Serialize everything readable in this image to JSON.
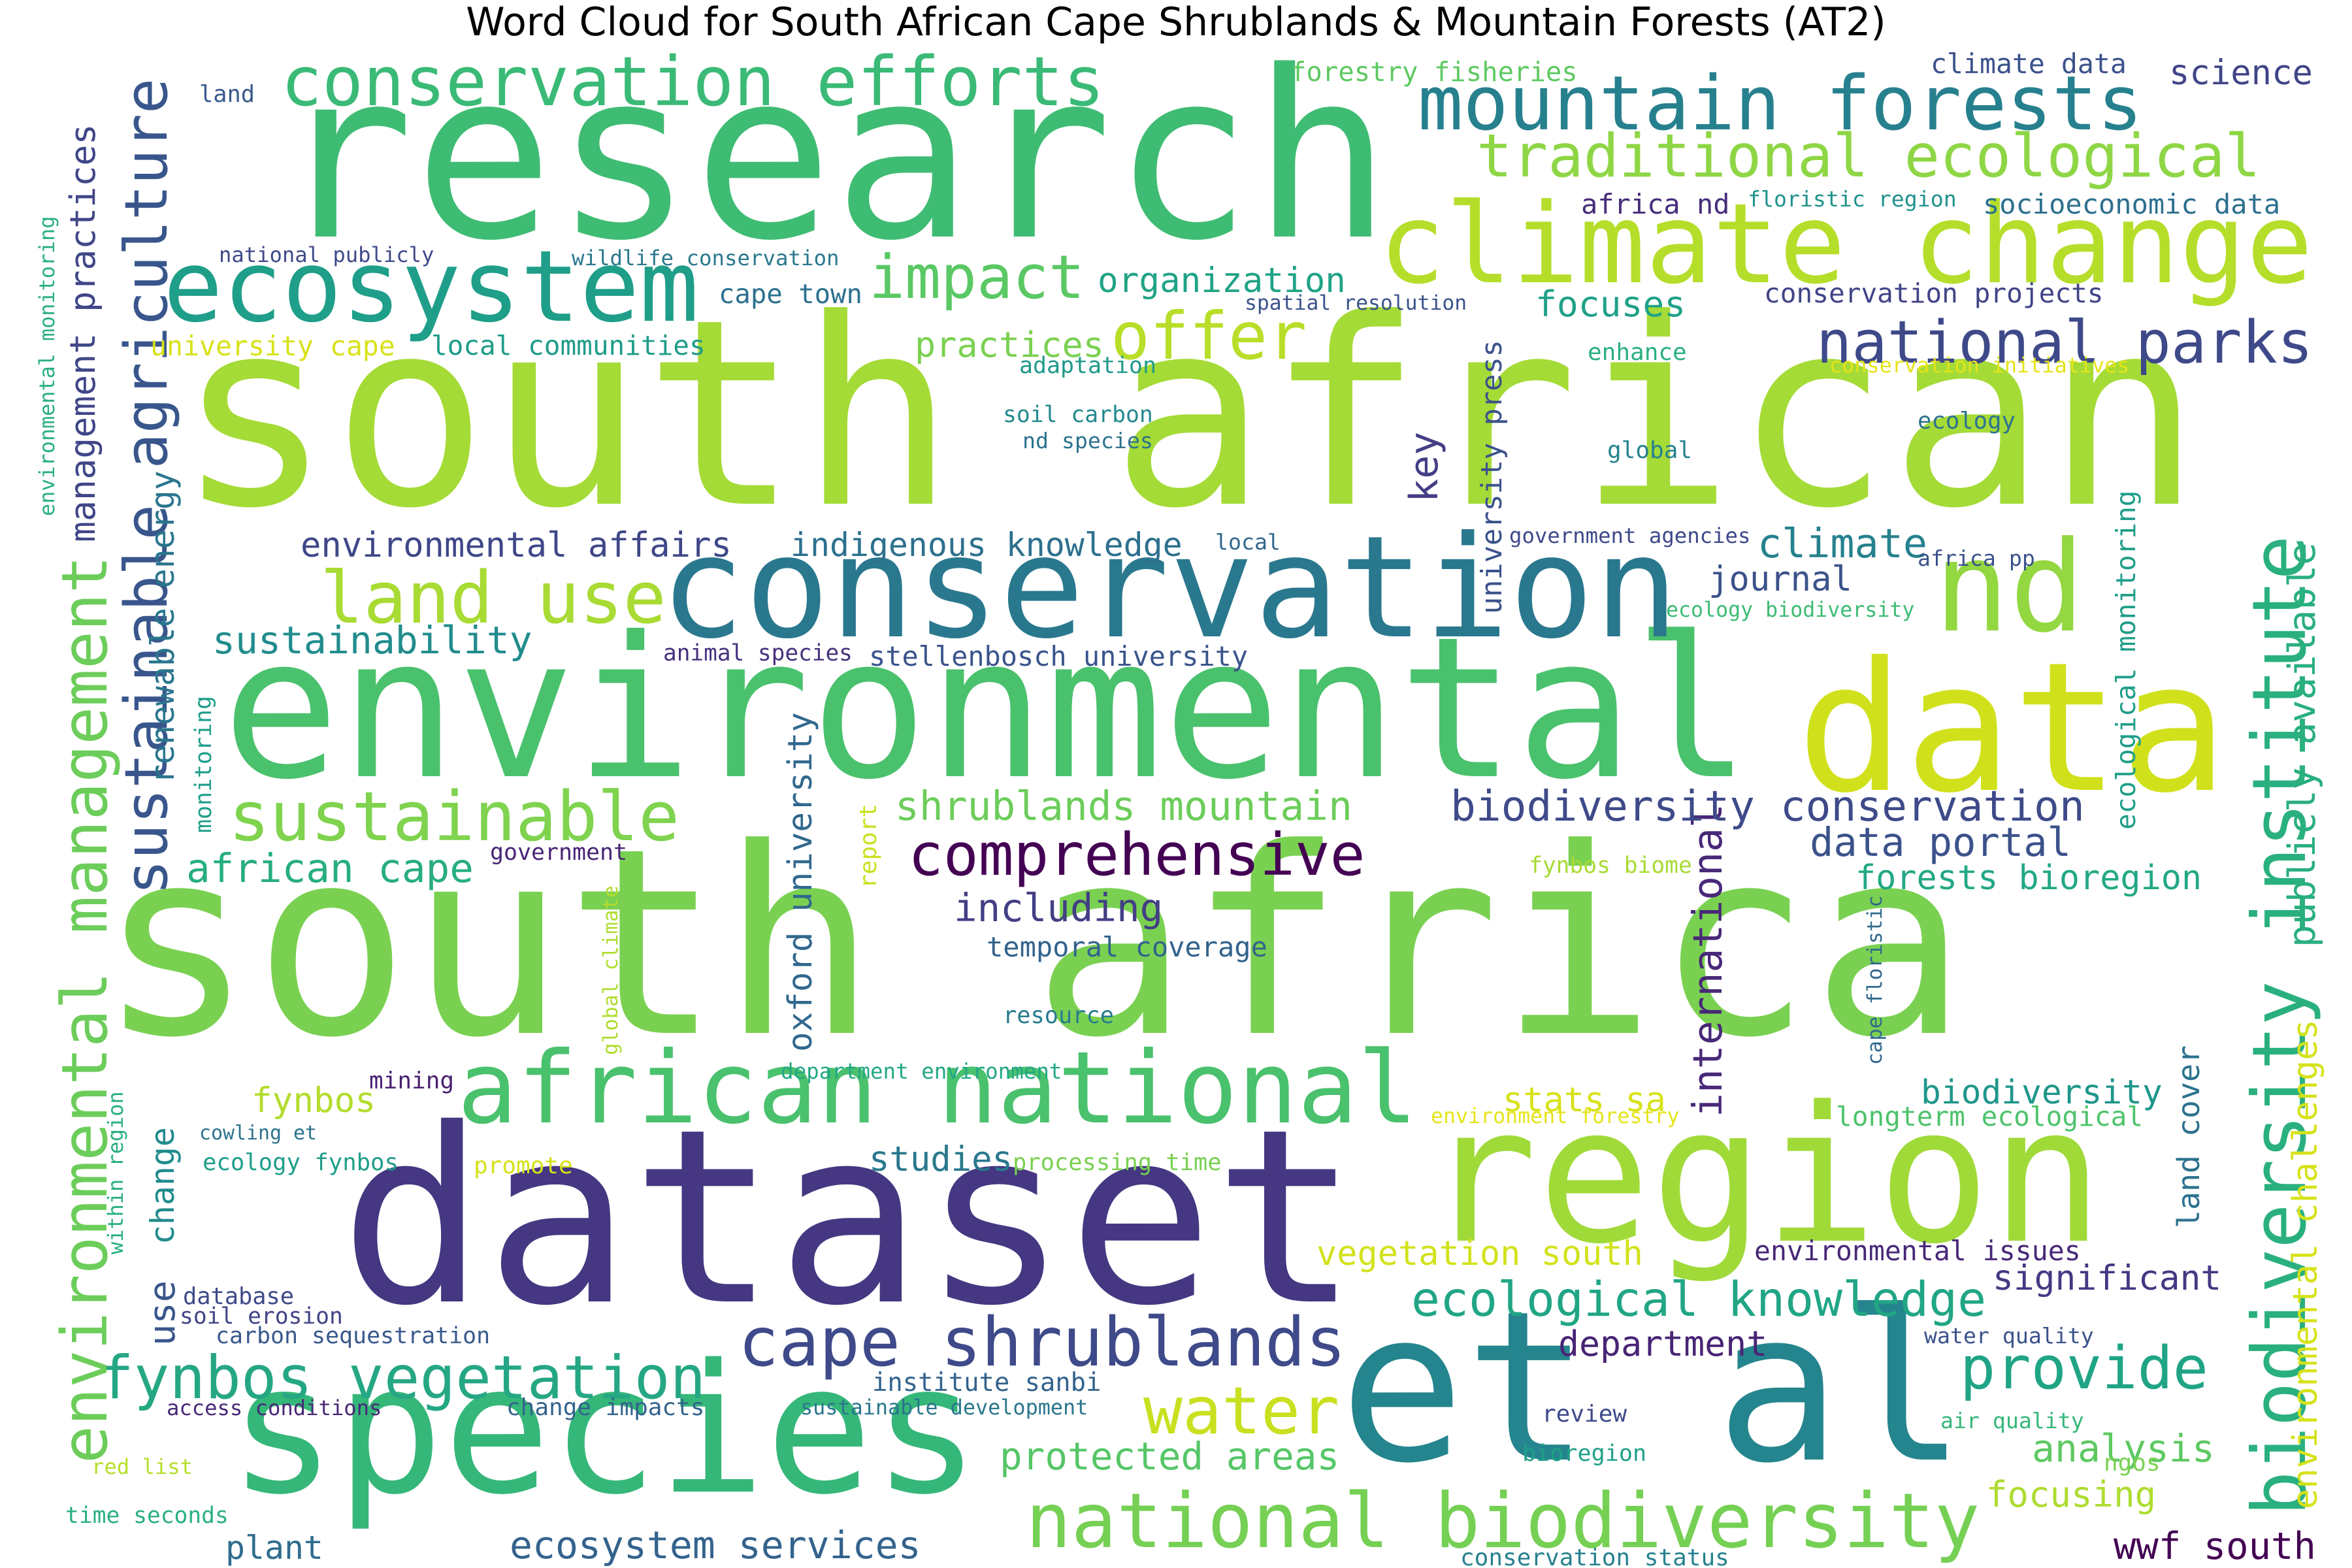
{
  "title": "Word Cloud for South African Cape Shrublands & Mountain Forests (AT2)",
  "words": [
    {
      "text": "south africa",
      "color": "#7ad151"
    },
    {
      "text": "south african",
      "color": "#a5db36"
    },
    {
      "text": "research",
      "color": "#3fbc73"
    },
    {
      "text": "environmental",
      "color": "#4ac16d"
    },
    {
      "text": "dataset",
      "color": "#453781"
    },
    {
      "text": "conservation",
      "color": "#2a788e"
    },
    {
      "text": "species",
      "color": "#35b779"
    },
    {
      "text": "et al",
      "color": "#25858e"
    },
    {
      "text": "region",
      "color": "#a0da39"
    },
    {
      "text": "data",
      "color": "#d0e11c"
    },
    {
      "text": "climate change",
      "color": "#b5de2b"
    },
    {
      "text": "african national",
      "color": "#4ac16d"
    },
    {
      "text": "national biodiversity",
      "color": "#75d054"
    },
    {
      "text": "ecosystem",
      "color": "#1f9e89"
    },
    {
      "text": "mountain forests",
      "color": "#27808e"
    },
    {
      "text": "conservation efforts",
      "color": "#3aba76"
    },
    {
      "text": "nd",
      "color": "#93d741"
    },
    {
      "text": "biodiversity institute",
      "color": "#2ab07f"
    },
    {
      "text": "sustainable",
      "color": "#7fd34e"
    },
    {
      "text": "land use",
      "color": "#a8db34"
    },
    {
      "text": "traditional ecological",
      "color": "#8ed645"
    },
    {
      "text": "cape shrublands",
      "color": "#3e4a89"
    },
    {
      "text": "fynbos vegetation",
      "color": "#26a784"
    },
    {
      "text": "water",
      "color": "#c8e020"
    },
    {
      "text": "ecological knowledge",
      "color": "#21a685"
    },
    {
      "text": "provide",
      "color": "#20a486"
    },
    {
      "text": "comprehensive",
      "color": "#440154"
    },
    {
      "text": "impact",
      "color": "#5ac864"
    },
    {
      "text": "offer",
      "color": "#b8de29"
    },
    {
      "text": "national parks",
      "color": "#3e4989"
    },
    {
      "text": "sustainable agriculture",
      "color": "#39568c"
    },
    {
      "text": "environmental management",
      "color": "#6ccd5a"
    },
    {
      "text": "environmental challenges",
      "color": "#d5e21a"
    },
    {
      "text": "university press",
      "color": "#3b528b"
    },
    {
      "text": "oxford university",
      "color": "#31688e"
    },
    {
      "text": "international",
      "color": "#482878"
    },
    {
      "text": "publicly available",
      "color": "#29af7f"
    },
    {
      "text": "shrublands mountain",
      "color": "#6ccd5a"
    },
    {
      "text": "biodiversity conservation",
      "color": "#3e4a89"
    },
    {
      "text": "management practices",
      "color": "#404688"
    },
    {
      "text": "renewable energy",
      "color": "#2a768e"
    },
    {
      "text": "protected areas",
      "color": "#56c667"
    },
    {
      "text": "ecosystem services",
      "color": "#33638d"
    },
    {
      "text": "data portal",
      "color": "#3b528b"
    },
    {
      "text": "forests bioregion",
      "color": "#22a884"
    },
    {
      "text": "including",
      "color": "#433e85"
    },
    {
      "text": "african cape",
      "color": "#27ad81"
    },
    {
      "text": "sustainability",
      "color": "#228c8d"
    },
    {
      "text": "environmental affairs",
      "color": "#3f4788"
    },
    {
      "text": "indigenous knowledge",
      "color": "#2d708e"
    },
    {
      "text": "organization",
      "color": "#20a386"
    },
    {
      "text": "practices",
      "color": "#7ad151"
    },
    {
      "text": "focuses",
      "color": "#1fa188"
    },
    {
      "text": "science",
      "color": "#404588"
    },
    {
      "text": "climate",
      "color": "#26818e"
    },
    {
      "text": "journal",
      "color": "#3b528b"
    },
    {
      "text": "significant",
      "color": "#443983"
    },
    {
      "text": "department",
      "color": "#482475"
    },
    {
      "text": "biodiversity",
      "color": "#1f968b"
    },
    {
      "text": "analysis",
      "color": "#5ec962"
    },
    {
      "text": "focusing",
      "color": "#addc30"
    },
    {
      "text": "wwf south",
      "color": "#440154"
    },
    {
      "text": "stats sa",
      "color": "#d8e219"
    },
    {
      "text": "vegetation south",
      "color": "#d2e21b"
    },
    {
      "text": "studies",
      "color": "#2a788e"
    },
    {
      "text": "plant",
      "color": "#2f6c8e"
    },
    {
      "text": "fynbos",
      "color": "#b2dd2d"
    },
    {
      "text": "key",
      "color": "#433e85"
    },
    {
      "text": "use",
      "color": "#39568c"
    },
    {
      "text": "change",
      "color": "#228b8d"
    },
    {
      "text": "temporal coverage",
      "color": "#33638d"
    },
    {
      "text": "stellenbosch university",
      "color": "#3a548c"
    },
    {
      "text": "cape town",
      "color": "#2c718e"
    },
    {
      "text": "local communities",
      "color": "#1e9c89"
    },
    {
      "text": "forestry fisheries",
      "color": "#5ec962"
    },
    {
      "text": "climate data",
      "color": "#3b528b"
    },
    {
      "text": "socioeconomic data",
      "color": "#2d708e"
    },
    {
      "text": "conservation projects",
      "color": "#414487"
    },
    {
      "text": "environmental issues",
      "color": "#482878"
    },
    {
      "text": "longterm ecological",
      "color": "#4ec36b"
    },
    {
      "text": "land cover",
      "color": "#2c728e"
    },
    {
      "text": "ecological monitoring",
      "color": "#1f9e89"
    },
    {
      "text": "africa nd",
      "color": "#472c7a"
    },
    {
      "text": "floristic region",
      "color": "#20928c"
    },
    {
      "text": "spatial resolution",
      "color": "#3b528b"
    },
    {
      "text": "adaptation",
      "color": "#1f9a8a"
    },
    {
      "text": "enhance",
      "color": "#2ab07f"
    },
    {
      "text": "conservation initiatives",
      "color": "#e5e419"
    },
    {
      "text": "soil carbon",
      "color": "#23898e"
    },
    {
      "text": "nd species",
      "color": "#2c728e"
    },
    {
      "text": "global",
      "color": "#26828e"
    },
    {
      "text": "ecology",
      "color": "#2c728e"
    },
    {
      "text": "government agencies",
      "color": "#3e4989"
    },
    {
      "text": "africa pp",
      "color": "#3b528b"
    },
    {
      "text": "local",
      "color": "#31688e"
    },
    {
      "text": "ecology biodiversity",
      "color": "#3dbc74"
    },
    {
      "text": "animal species",
      "color": "#46327e"
    },
    {
      "text": "national publicly",
      "color": "#3e4a89"
    },
    {
      "text": "wildlife conservation",
      "color": "#2a788e"
    },
    {
      "text": "university cape",
      "color": "#d8e219"
    },
    {
      "text": "environmental monitoring",
      "color": "#2ab07f"
    },
    {
      "text": "land",
      "color": "#38598c"
    },
    {
      "text": "monitoring",
      "color": "#1f9e89"
    },
    {
      "text": "government",
      "color": "#482475"
    },
    {
      "text": "report",
      "color": "#cae11f"
    },
    {
      "text": "global climate",
      "color": "#b0dd2f"
    },
    {
      "text": "fynbos biome",
      "color": "#a8db34"
    },
    {
      "text": "cape floristic",
      "color": "#306a8e"
    },
    {
      "text": "resource",
      "color": "#287c8e"
    },
    {
      "text": "department environment",
      "color": "#22a884"
    },
    {
      "text": "mining",
      "color": "#481f70"
    },
    {
      "text": "environment forestry",
      "color": "#e5e419"
    },
    {
      "text": "cowling et",
      "color": "#2c728e"
    },
    {
      "text": "ecology fynbos",
      "color": "#1f9e89"
    },
    {
      "text": "promote",
      "color": "#d5e21a"
    },
    {
      "text": "processing time",
      "color": "#7ad151"
    },
    {
      "text": "within region",
      "color": "#29af7f"
    },
    {
      "text": "database",
      "color": "#3e4a89"
    },
    {
      "text": "soil erosion",
      "color": "#414487"
    },
    {
      "text": "carbon sequestration",
      "color": "#38598c"
    },
    {
      "text": "institute sanbi",
      "color": "#33638d"
    },
    {
      "text": "access conditions",
      "color": "#482878"
    },
    {
      "text": "change impacts",
      "color": "#33638d"
    },
    {
      "text": "sustainable development",
      "color": "#2a768e"
    },
    {
      "text": "water quality",
      "color": "#3b528b"
    },
    {
      "text": "review",
      "color": "#3e4a89"
    },
    {
      "text": "air quality",
      "color": "#35b779"
    },
    {
      "text": "bioregion",
      "color": "#1fa088"
    },
    {
      "text": "ngos",
      "color": "#7ad151"
    },
    {
      "text": "red list",
      "color": "#b5de2b"
    },
    {
      "text": "time seconds",
      "color": "#2ab07f"
    },
    {
      "text": "conservation status",
      "color": "#26828e"
    }
  ]
}
